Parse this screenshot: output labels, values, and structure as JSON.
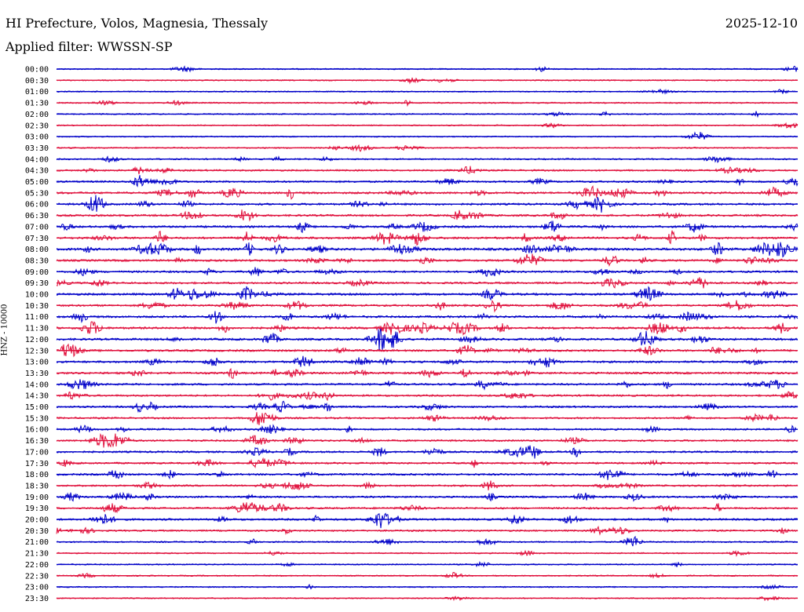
{
  "header": {
    "location": "HI Prefecture, Volos, Magnesia, Thessaly",
    "date": "2025-12-10",
    "filter": "Applied filter: WWSSN-SP"
  },
  "chart_data": {
    "type": "line",
    "ylabel": "HNZ - 10000",
    "rows": [
      "00:00",
      "00:30",
      "01:00",
      "01:30",
      "02:00",
      "02:30",
      "03:00",
      "03:30",
      "04:00",
      "04:30",
      "05:00",
      "05:30",
      "06:00",
      "06:30",
      "07:00",
      "07:30",
      "08:00",
      "08:30",
      "09:00",
      "09:30",
      "10:00",
      "10:30",
      "11:00",
      "11:30",
      "12:00",
      "12:30",
      "13:00",
      "13:30",
      "14:00",
      "14:30",
      "15:00",
      "15:30",
      "16:00",
      "16:30",
      "17:00",
      "17:30",
      "18:00",
      "18:30",
      "19:00",
      "19:30",
      "20:00",
      "20:30",
      "21:00",
      "21:30",
      "22:00",
      "22:30",
      "23:00",
      "23:30"
    ],
    "colors": [
      "#0000c8",
      "#e0103c"
    ],
    "activity": [
      0.15,
      0.12,
      0.12,
      0.2,
      0.15,
      0.12,
      0.12,
      0.18,
      0.25,
      0.35,
      0.45,
      0.55,
      0.5,
      0.5,
      0.55,
      0.6,
      0.75,
      0.55,
      0.5,
      0.5,
      0.6,
      0.5,
      0.55,
      0.6,
      0.6,
      0.55,
      0.55,
      0.55,
      0.5,
      0.45,
      0.45,
      0.4,
      0.4,
      0.4,
      0.45,
      0.4,
      0.5,
      0.4,
      0.45,
      0.45,
      0.5,
      0.35,
      0.25,
      0.15,
      0.15,
      0.15,
      0.12,
      0.12
    ]
  }
}
